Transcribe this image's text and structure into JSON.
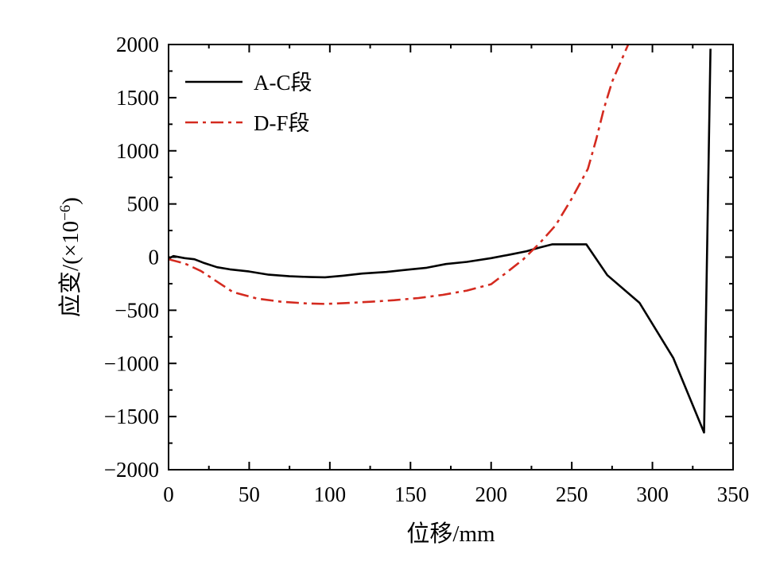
{
  "chart_data": {
    "type": "line",
    "title": "",
    "xlabel": "位移/mm",
    "ylabel_main": "应变/(×10",
    "ylabel_exp": "−6",
    "ylabel_tail": ")",
    "xlim": [
      0,
      350
    ],
    "ylim": [
      -2000,
      2000
    ],
    "xticks": [
      0,
      50,
      100,
      150,
      200,
      250,
      300,
      350
    ],
    "xtick_labels": [
      "0",
      "50",
      "100",
      "150",
      "200",
      "250",
      "300",
      "350"
    ],
    "yticks": [
      -2000,
      -1500,
      -1000,
      -500,
      0,
      500,
      1000,
      1500,
      2000
    ],
    "ytick_labels": [
      "−2000",
      "−1500",
      "−1000",
      "−500",
      "0",
      "500",
      "1000",
      "1500",
      "2000"
    ],
    "grid": false,
    "legend_position": "top-left",
    "series": [
      {
        "name": "A-C段",
        "color": "#000000",
        "dash": "solid",
        "x": [
          0,
          3,
          10,
          16,
          22,
          30,
          38,
          50,
          62,
          75,
          88,
          97,
          108,
          120,
          135,
          150,
          160,
          172,
          185,
          200,
          212,
          222,
          230,
          238,
          248,
          259,
          272,
          292,
          313,
          332,
          336
        ],
        "y": [
          -15,
          10,
          -10,
          -20,
          -55,
          -95,
          -115,
          -135,
          -165,
          -180,
          -188,
          -190,
          -175,
          -155,
          -140,
          -115,
          -100,
          -65,
          -45,
          -10,
          25,
          55,
          90,
          120,
          120,
          120,
          -170,
          -430,
          -950,
          -1650,
          1960
        ]
      },
      {
        "name": "D-F段",
        "color": "#d42a1f",
        "dash": "dash-dot",
        "x": [
          0,
          10,
          20,
          30,
          40,
          55,
          70,
          85,
          97,
          110,
          125,
          140,
          155,
          170,
          185,
          200,
          210,
          220,
          230,
          240,
          250,
          260,
          265,
          270,
          275,
          285
        ],
        "y": [
          -20,
          -60,
          -130,
          -230,
          -330,
          -390,
          -420,
          -435,
          -440,
          -432,
          -420,
          -405,
          -385,
          -355,
          -315,
          -255,
          -140,
          -20,
          130,
          300,
          550,
          830,
          1100,
          1400,
          1650,
          2000
        ]
      }
    ]
  }
}
